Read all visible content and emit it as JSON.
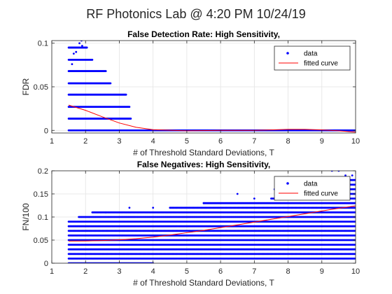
{
  "figure": {
    "title": "RF Photonics Lab @ 4:20 PM 10/24/19"
  },
  "colors": {
    "data": "#0000ff",
    "fit": "#ff0000",
    "grid": "#e3e3e3",
    "axes": "#262626"
  },
  "chart_data": [
    {
      "type": "scatter",
      "title": "False Detection Rate: High Sensitivity,",
      "xlabel": "# of Threshold Standard Deviations, T",
      "ylabel": "FDR",
      "xlim": [
        1,
        10
      ],
      "ylim": [
        -0.003,
        0.103
      ],
      "xticks": [
        1,
        2,
        3,
        4,
        5,
        6,
        7,
        8,
        9,
        10
      ],
      "xtick_labels": [
        "1",
        "2",
        "3",
        "4",
        "5",
        "6",
        "7",
        "8",
        "9",
        "10"
      ],
      "yticks": [
        0,
        0.05,
        0.1
      ],
      "ytick_labels": [
        "0",
        "0.05",
        "0.1"
      ],
      "grid": true,
      "legend": {
        "position": "top-right",
        "entries": [
          "data",
          "fitted curve"
        ]
      },
      "series": [
        {
          "name": "data",
          "style": "points",
          "x_range": [
            1.5,
            10.0
          ],
          "x_step": 0.02,
          "bands": [
            {
              "y": 0.0,
              "x_range": [
                1.5,
                10.0
              ]
            },
            {
              "y": 0.0135,
              "x_range": [
                1.5,
                3.35
              ]
            },
            {
              "y": 0.027,
              "x_range": [
                1.5,
                3.3
              ]
            },
            {
              "y": 0.041,
              "x_range": [
                1.5,
                3.2
              ]
            },
            {
              "y": 0.054,
              "x_range": [
                1.5,
                2.75
              ]
            },
            {
              "y": 0.068,
              "x_range": [
                1.5,
                2.6
              ]
            },
            {
              "y": 0.081,
              "x_range": [
                1.5,
                2.2
              ]
            },
            {
              "y": 0.095,
              "x_range": [
                1.5,
                2.05
              ]
            }
          ],
          "points": [
            [
              1.82,
              0.1
            ],
            [
              1.88,
              0.103
            ],
            [
              1.65,
              0.088
            ],
            [
              1.72,
              0.09
            ],
            [
              1.6,
              0.076
            ],
            [
              1.9,
              0.097
            ]
          ]
        },
        {
          "name": "fitted curve",
          "style": "line",
          "x": [
            1.5,
            2.0,
            2.5,
            3.0,
            3.5,
            4.0,
            5.0,
            6.0,
            7.0,
            7.5,
            8.0,
            8.5,
            9.0,
            9.5,
            10.0
          ],
          "y": [
            0.029,
            0.023,
            0.0155,
            0.0085,
            0.0035,
            0.0008,
            -0.0005,
            0.0,
            0.0,
            0.0005,
            0.0012,
            0.0012,
            0.0005,
            -0.0005,
            -0.002
          ]
        }
      ]
    },
    {
      "type": "scatter",
      "title": "False Negatives: High Sensitivity,",
      "xlabel": "# of Threshold Standard Deviations, T",
      "ylabel": "FN/100",
      "xlim": [
        1,
        10
      ],
      "ylim": [
        0,
        0.2
      ],
      "xticks": [
        1,
        2,
        3,
        4,
        5,
        6,
        7,
        8,
        9,
        10
      ],
      "xtick_labels": [
        "1",
        "2",
        "3",
        "4",
        "5",
        "6",
        "7",
        "8",
        "9",
        "10"
      ],
      "yticks": [
        0,
        0.05,
        0.1,
        0.15,
        0.2
      ],
      "ytick_labels": [
        "0",
        "0.05",
        "0.1",
        "0.15",
        "0.2"
      ],
      "grid": true,
      "legend": {
        "position": "top-right",
        "entries": [
          "data",
          "fitted curve"
        ]
      },
      "series": [
        {
          "name": "data",
          "style": "points",
          "x_step": 0.025,
          "bands": [
            {
              "y": 0.0,
              "x_range": [
                1.5,
                4.0
              ]
            },
            {
              "y": 0.01,
              "x_range": [
                1.5,
                10.0
              ]
            },
            {
              "y": 0.02,
              "x_range": [
                1.5,
                10.0
              ]
            },
            {
              "y": 0.03,
              "x_range": [
                1.5,
                10.0
              ]
            },
            {
              "y": 0.04,
              "x_range": [
                1.5,
                10.0
              ]
            },
            {
              "y": 0.05,
              "x_range": [
                1.5,
                10.0
              ]
            },
            {
              "y": 0.06,
              "x_range": [
                1.5,
                10.0
              ]
            },
            {
              "y": 0.07,
              "x_range": [
                1.5,
                10.0
              ]
            },
            {
              "y": 0.08,
              "x_range": [
                1.5,
                10.0
              ]
            },
            {
              "y": 0.09,
              "x_range": [
                1.5,
                10.0
              ]
            },
            {
              "y": 0.1,
              "x_range": [
                1.8,
                10.0
              ]
            },
            {
              "y": 0.11,
              "x_range": [
                2.2,
                10.0
              ]
            },
            {
              "y": 0.12,
              "x_range": [
                4.5,
                10.0
              ]
            },
            {
              "y": 0.13,
              "x_range": [
                5.5,
                10.0
              ]
            },
            {
              "y": 0.14,
              "x_range": [
                7.5,
                10.0
              ]
            },
            {
              "y": 0.15,
              "x_range": [
                8.3,
                10.0
              ]
            },
            {
              "y": 0.16,
              "x_range": [
                9.0,
                10.0
              ]
            },
            {
              "y": 0.17,
              "x_range": [
                9.4,
                10.0
              ]
            },
            {
              "y": 0.18,
              "x_range": [
                9.7,
                10.0
              ]
            }
          ],
          "points": [
            [
              2.6,
              0.11
            ],
            [
              3.3,
              0.12
            ],
            [
              4.0,
              0.12
            ],
            [
              5.5,
              0.13
            ],
            [
              6.5,
              0.15
            ],
            [
              7.0,
              0.14
            ],
            [
              7.6,
              0.16
            ],
            [
              8.2,
              0.17
            ],
            [
              8.8,
              0.17
            ],
            [
              9.3,
              0.2
            ],
            [
              9.5,
              0.2
            ],
            [
              9.7,
              0.19
            ],
            [
              9.9,
              0.19
            ]
          ]
        },
        {
          "name": "fitted curve",
          "style": "line",
          "x": [
            1.5,
            2.0,
            2.5,
            3.0,
            3.5,
            4.0,
            4.5,
            5.0,
            5.5,
            6.0,
            6.5,
            7.0,
            7.5,
            8.0,
            8.5,
            9.0,
            9.5,
            10.0
          ],
          "y": [
            0.048,
            0.0482,
            0.049,
            0.0505,
            0.053,
            0.0565,
            0.061,
            0.066,
            0.071,
            0.077,
            0.083,
            0.089,
            0.095,
            0.101,
            0.107,
            0.113,
            0.119,
            0.124
          ]
        }
      ]
    }
  ]
}
